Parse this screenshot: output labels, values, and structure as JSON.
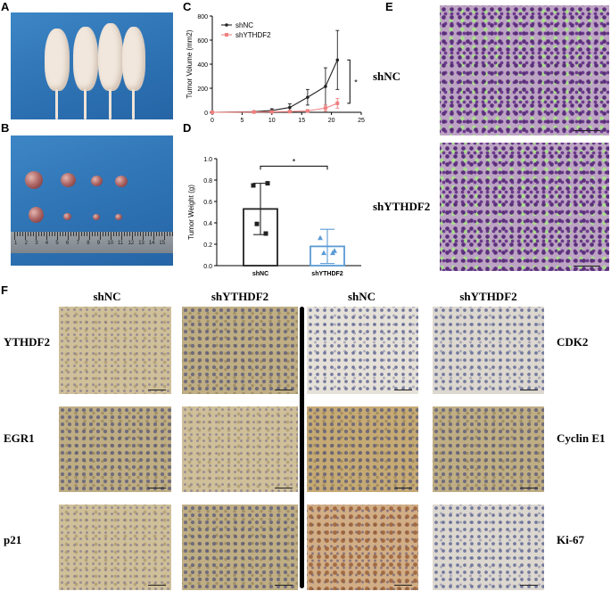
{
  "panels": {
    "A": "A",
    "B": "B",
    "C": "C",
    "D": "D",
    "E": "E",
    "F": "F"
  },
  "panel_b": {
    "ruler_numbers": [
      "1",
      "2",
      "3",
      "4",
      "5",
      "6",
      "7",
      "8",
      "9",
      "10",
      "11",
      "12",
      "13",
      "14",
      "15"
    ]
  },
  "panel_e": {
    "labels": [
      "shNC",
      "shYTHDF2"
    ]
  },
  "panel_f": {
    "left_columns": [
      "shNC",
      "shYTHDF2"
    ],
    "right_columns": [
      "shNC",
      "shYTHDF2"
    ],
    "left_rows": [
      "YTHDF2",
      "EGR1",
      "p21"
    ],
    "right_rows": [
      "CDK2",
      "Cyclin E1",
      "Ki-67"
    ]
  },
  "colors": {
    "shNC": "#222222",
    "shYTHDF2": "#f08080",
    "shYTHDF2_bar": "#5b9bd5"
  },
  "chart_data": [
    {
      "panel": "C",
      "type": "line",
      "title": "",
      "xlabel": "",
      "ylabel": "Tumor Volume (mm2)",
      "xlim": [
        0,
        25
      ],
      "ylim": [
        0,
        800
      ],
      "xticks": [
        0,
        5,
        10,
        15,
        20,
        25
      ],
      "yticks": [
        0,
        200,
        400,
        600,
        800
      ],
      "legend": "top-left",
      "significance": "*",
      "series": [
        {
          "name": "shNC",
          "color": "#222222",
          "x": [
            0,
            7,
            10,
            13,
            16,
            19,
            21
          ],
          "y": [
            0,
            5,
            15,
            40,
            125,
            215,
            435
          ],
          "err": [
            0,
            5,
            15,
            30,
            65,
            155,
            245
          ]
        },
        {
          "name": "shYTHDF2",
          "color": "#f08080",
          "x": [
            0,
            7,
            10,
            13,
            16,
            19,
            21
          ],
          "y": [
            0,
            2,
            4,
            6,
            12,
            35,
            75
          ],
          "err": [
            0,
            2,
            4,
            6,
            10,
            25,
            40
          ]
        }
      ]
    },
    {
      "panel": "D",
      "type": "bar",
      "title": "",
      "xlabel": "",
      "ylabel": "Tumor Weight (g)",
      "ylim": [
        0,
        1.0
      ],
      "yticks": [
        "0.0",
        "0.2",
        "0.4",
        "0.6",
        "0.8",
        "1.0"
      ],
      "categories": [
        "shNC",
        "shYTHDF2"
      ],
      "values": [
        0.53,
        0.18
      ],
      "errors": [
        0.24,
        0.16
      ],
      "significance": "*",
      "points": [
        [
          0.75,
          0.77,
          0.39,
          0.3
        ],
        [
          0.26,
          0.14,
          0.12,
          0.12
        ]
      ],
      "colors": [
        "#222222",
        "#5b9bd5"
      ]
    }
  ]
}
